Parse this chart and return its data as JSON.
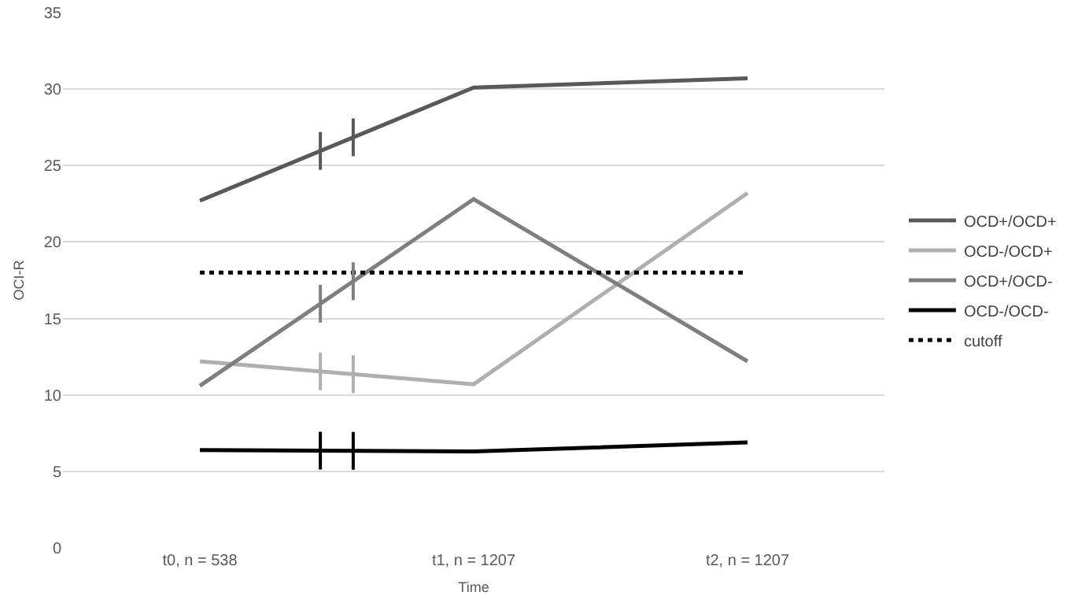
{
  "chart_data": {
    "type": "line",
    "xlabel": "Time",
    "ylabel": "OCI-R",
    "categories": [
      "t0, n = 538",
      "t1, n = 1207",
      "t2, n = 1207"
    ],
    "series": [
      {
        "name": "OCD+/OCD+",
        "color": "#595959",
        "values": [
          22.7,
          30.1,
          30.7
        ]
      },
      {
        "name": "OCD-/OCD+",
        "color": "#afafaf",
        "values": [
          12.2,
          10.7,
          23.2
        ]
      },
      {
        "name": "OCD+/OCD-",
        "color": "#7f7f7f",
        "values": [
          10.6,
          22.8,
          12.2
        ]
      },
      {
        "name": "OCD-/OCD-",
        "color": "#000000",
        "values": [
          6.4,
          6.3,
          6.9
        ]
      },
      {
        "name": "cutoff",
        "color": "#000000",
        "values": [
          18,
          18,
          18
        ],
        "line_style": "dotted"
      }
    ],
    "ylim": [
      0,
      35
    ],
    "yticks": [
      0,
      5,
      10,
      15,
      20,
      25,
      30,
      35
    ],
    "grid": "y",
    "legend": "right",
    "marker": "none",
    "line_style": "solid"
  }
}
